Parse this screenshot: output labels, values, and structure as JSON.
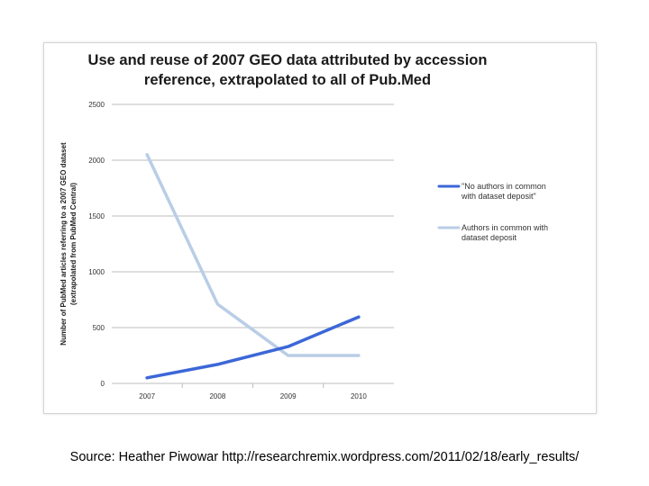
{
  "chart_data": {
    "type": "line",
    "title_lines": [
      "Use and reuse of 2007 GEO data attributed by accession",
      "reference, extrapolated to all of Pub.Med"
    ],
    "ylabel_lines": [
      "Number of PubMed articles referring to a 2007 GEO dataset",
      "(extrapolated from PubMed Central)"
    ],
    "xlabel": "",
    "categories": [
      "2007",
      "2008",
      "2009",
      "2010"
    ],
    "ylim": [
      0,
      2500
    ],
    "yticks": [
      "0",
      "500",
      "1000",
      "1500",
      "2000",
      "2500"
    ],
    "grid": true,
    "legend_position": "right",
    "series": [
      {
        "name_lines": [
          "\"No authors in common",
          "with dataset deposit\""
        ],
        "color": "#3c67d8",
        "values": [
          50,
          170,
          330,
          595
        ]
      },
      {
        "name_lines": [
          "Authors in common with",
          "dataset deposit"
        ],
        "color": "#b9cde6",
        "values": [
          2050,
          710,
          250,
          250
        ]
      }
    ]
  },
  "caption": "Source: Heather Piwowar  http://researchremix.wordpress.com/2011/02/18/early_results/"
}
